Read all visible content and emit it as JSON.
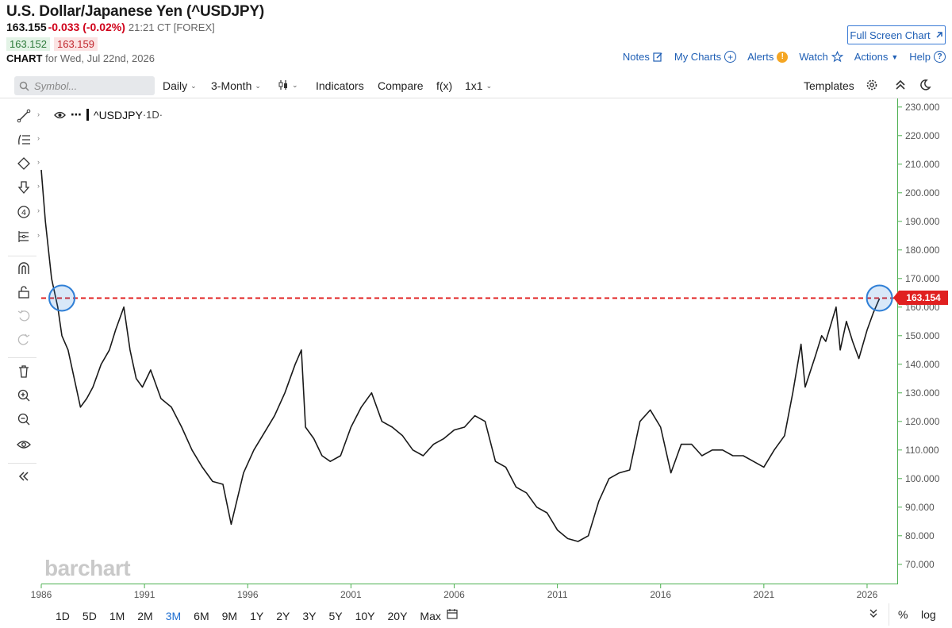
{
  "header": {
    "title": "U.S. Dollar/Japanese Yen (^USDJPY)",
    "last": "163.155",
    "change": "-0.033 (-0.02%)",
    "time": "21:21 CT [FOREX]",
    "bid": "163.152",
    "ask": "163.159",
    "chart_label": "CHART",
    "chart_date": "for Wed, Jul 22nd, 2026",
    "fullscreen": "Full Screen Chart"
  },
  "links": {
    "notes": "Notes",
    "mycharts": "My Charts",
    "alerts": "Alerts",
    "watch": "Watch",
    "actions": "Actions",
    "help": "Help"
  },
  "toolbar": {
    "search_placeholder": "Symbol...",
    "interval": "Daily",
    "period": "3-Month",
    "indicators": "Indicators",
    "compare": "Compare",
    "fx": "f(x)",
    "layout": "1x1",
    "templates": "Templates"
  },
  "legend": {
    "symbol": "^USDJPY",
    "interval": "·1D·"
  },
  "watermark": "barchart",
  "price_tag": "163.154",
  "ranges": [
    "1D",
    "5D",
    "1M",
    "2M",
    "3M",
    "6M",
    "9M",
    "1Y",
    "2Y",
    "3Y",
    "5Y",
    "10Y",
    "20Y",
    "Max"
  ],
  "active_range": "3M",
  "bottom": {
    "percent": "%",
    "log": "log"
  },
  "colors": {
    "line": "#1a1a1a",
    "price_line": "#e02020",
    "highlight": "#2f7fd6",
    "axis": "#4caf50",
    "active": "#1f6fd1"
  },
  "icons": [
    "search-icon",
    "candle-icon",
    "gear-icon",
    "collapse-icon",
    "moon-icon",
    "trend-line-icon",
    "fib-icon",
    "shape-icon",
    "arrow-icon",
    "counter-icon",
    "layers-icon",
    "magnet-icon",
    "lock-icon",
    "undo-icon",
    "redo-icon",
    "trash-icon",
    "zoom-in-icon",
    "zoom-out-icon",
    "eye-icon",
    "collapse-left-icon",
    "calendar-icon",
    "pencil-icon",
    "plus-icon",
    "star-icon"
  ],
  "chart_data": {
    "type": "line",
    "title": "^USDJPY",
    "ylim": [
      63,
      233
    ],
    "xlim": [
      1986.0,
      2027.5
    ],
    "y_ticks": [
      70,
      80,
      90,
      100,
      110,
      120,
      130,
      140,
      150,
      160,
      170,
      180,
      190,
      200,
      210,
      220,
      230
    ],
    "y_tick_labels": [
      "70.000",
      "80.000",
      "90.000",
      "100.000",
      "110.000",
      "120.000",
      "130.000",
      "140.000",
      "150.000",
      "160.000",
      "170.000",
      "180.000",
      "190.000",
      "200.000",
      "210.000",
      "220.000",
      "230.000"
    ],
    "x_ticks": [
      1986,
      1991,
      1996,
      2001,
      2006,
      2011,
      2016,
      2021,
      2026
    ],
    "x_tick_labels": [
      "1986",
      "1991",
      "1996",
      "2001",
      "2006",
      "2011",
      "2016",
      "2021",
      "2026"
    ],
    "current_price": 163.154,
    "highlighted_points": [
      [
        1987.0,
        163.154
      ],
      [
        2026.6,
        163.154
      ]
    ],
    "series": [
      {
        "x": [
          1986.0,
          1986.2,
          1986.5,
          1986.8,
          1987.0,
          1987.3,
          1987.6,
          1987.9,
          1988.2,
          1988.5,
          1988.9,
          1989.3,
          1989.6,
          1990.0,
          1990.3,
          1990.6,
          1990.9,
          1991.3,
          1991.8,
          1992.3,
          1992.8,
          1993.3,
          1993.8,
          1994.3,
          1994.8,
          1995.2,
          1995.4,
          1995.8,
          1996.3,
          1996.8,
          1997.3,
          1997.8,
          1998.3,
          1998.6,
          1998.8,
          1999.2,
          1999.6,
          2000.0,
          2000.5,
          2001.0,
          2001.5,
          2002.0,
          2002.5,
          2003.0,
          2003.5,
          2004.0,
          2004.5,
          2005.0,
          2005.5,
          2006.0,
          2006.5,
          2007.0,
          2007.5,
          2008.0,
          2008.5,
          2009.0,
          2009.5,
          2010.0,
          2010.5,
          2011.0,
          2011.5,
          2012.0,
          2012.5,
          2013.0,
          2013.5,
          2014.0,
          2014.5,
          2015.0,
          2015.5,
          2016.0,
          2016.5,
          2017.0,
          2017.5,
          2018.0,
          2018.5,
          2019.0,
          2019.5,
          2020.0,
          2020.5,
          2021.0,
          2021.5,
          2022.0,
          2022.4,
          2022.8,
          2023.0,
          2023.5,
          2023.8,
          2024.0,
          2024.5,
          2024.7,
          2025.0,
          2025.3,
          2025.6,
          2026.0,
          2026.3,
          2026.6
        ],
        "y": [
          208,
          190,
          170,
          160,
          150,
          145,
          135,
          125,
          128,
          132,
          140,
          145,
          152,
          160,
          145,
          135,
          132,
          138,
          128,
          125,
          118,
          110,
          104,
          99,
          98,
          84,
          90,
          102,
          110,
          116,
          122,
          130,
          140,
          145,
          118,
          114,
          108,
          106,
          108,
          118,
          125,
          130,
          120,
          118,
          115,
          110,
          108,
          112,
          114,
          117,
          118,
          122,
          120,
          106,
          104,
          97,
          95,
          90,
          88,
          82,
          79,
          78,
          80,
          92,
          100,
          102,
          103,
          120,
          124,
          118,
          102,
          112,
          112,
          108,
          110,
          110,
          108,
          108,
          106,
          104,
          110,
          115,
          130,
          147,
          132,
          143,
          150,
          148,
          160,
          145,
          155,
          148,
          142,
          152,
          158,
          163
        ]
      }
    ]
  }
}
